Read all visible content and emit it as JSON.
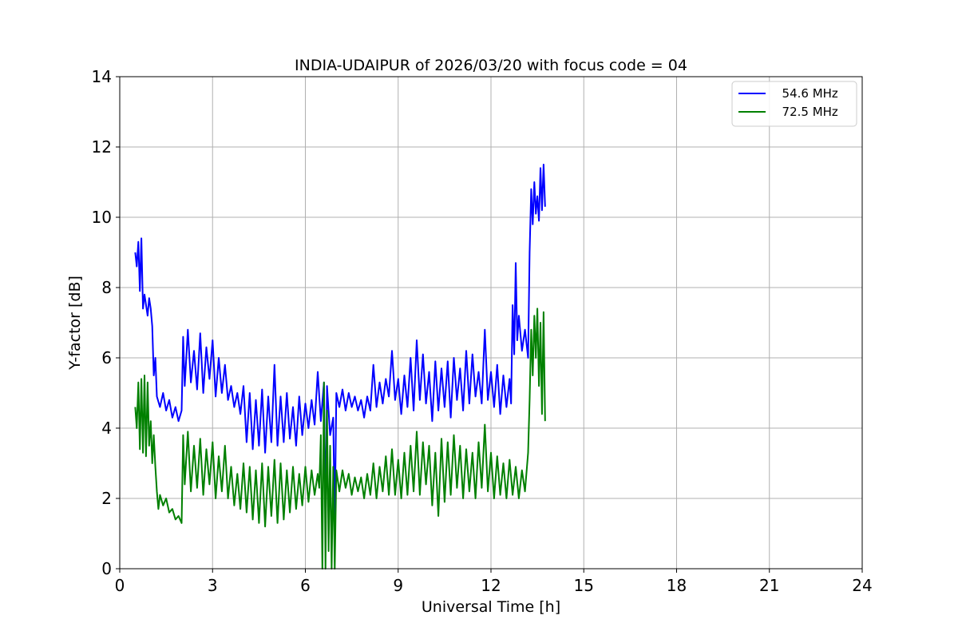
{
  "chart_data": {
    "type": "line",
    "title": "INDIA-UDAIPUR of 2026/03/20 with focus code = 04",
    "xlabel": "Universal Time [h]",
    "ylabel": "Y-factor [dB]",
    "xlim": [
      0,
      24
    ],
    "ylim": [
      0,
      14
    ],
    "xticks": [
      "0",
      "3",
      "6",
      "9",
      "12",
      "15",
      "18",
      "21",
      "24"
    ],
    "yticks": [
      "0",
      "2",
      "4",
      "6",
      "8",
      "10",
      "12",
      "14"
    ],
    "grid": true,
    "legend_position": "top-right",
    "series": [
      {
        "name": "  54.6 MHz",
        "color": "#0000ff",
        "points": [
          [
            0.5,
            9.0
          ],
          [
            0.55,
            8.6
          ],
          [
            0.6,
            9.3
          ],
          [
            0.65,
            7.9
          ],
          [
            0.7,
            9.4
          ],
          [
            0.75,
            7.4
          ],
          [
            0.8,
            7.8
          ],
          [
            0.9,
            7.2
          ],
          [
            0.95,
            7.7
          ],
          [
            1.0,
            7.4
          ],
          [
            1.05,
            6.9
          ],
          [
            1.1,
            5.5
          ],
          [
            1.15,
            6.0
          ],
          [
            1.2,
            4.9
          ],
          [
            1.3,
            4.6
          ],
          [
            1.4,
            5.0
          ],
          [
            1.5,
            4.5
          ],
          [
            1.6,
            4.8
          ],
          [
            1.7,
            4.3
          ],
          [
            1.8,
            4.6
          ],
          [
            1.9,
            4.2
          ],
          [
            2.0,
            4.5
          ],
          [
            2.05,
            6.6
          ],
          [
            2.1,
            5.2
          ],
          [
            2.2,
            6.8
          ],
          [
            2.3,
            5.3
          ],
          [
            2.4,
            6.2
          ],
          [
            2.5,
            5.1
          ],
          [
            2.6,
            6.7
          ],
          [
            2.7,
            5.0
          ],
          [
            2.8,
            6.3
          ],
          [
            2.9,
            5.4
          ],
          [
            3.0,
            6.5
          ],
          [
            3.1,
            4.9
          ],
          [
            3.2,
            6.0
          ],
          [
            3.3,
            5.0
          ],
          [
            3.4,
            5.8
          ],
          [
            3.5,
            4.8
          ],
          [
            3.6,
            5.2
          ],
          [
            3.7,
            4.6
          ],
          [
            3.8,
            5.0
          ],
          [
            3.9,
            4.4
          ],
          [
            4.0,
            5.2
          ],
          [
            4.1,
            3.6
          ],
          [
            4.2,
            5.0
          ],
          [
            4.3,
            3.4
          ],
          [
            4.4,
            4.8
          ],
          [
            4.5,
            3.5
          ],
          [
            4.6,
            5.1
          ],
          [
            4.7,
            3.3
          ],
          [
            4.8,
            4.9
          ],
          [
            4.9,
            3.6
          ],
          [
            5.0,
            5.8
          ],
          [
            5.1,
            3.5
          ],
          [
            5.2,
            4.9
          ],
          [
            5.3,
            3.6
          ],
          [
            5.4,
            5.0
          ],
          [
            5.5,
            3.7
          ],
          [
            5.6,
            4.6
          ],
          [
            5.7,
            3.5
          ],
          [
            5.8,
            4.9
          ],
          [
            5.9,
            3.8
          ],
          [
            6.0,
            4.7
          ],
          [
            6.1,
            4.0
          ],
          [
            6.2,
            4.8
          ],
          [
            6.3,
            4.1
          ],
          [
            6.4,
            5.6
          ],
          [
            6.5,
            4.2
          ],
          [
            6.6,
            5.3
          ],
          [
            6.65,
            1.2
          ],
          [
            6.7,
            5.2
          ],
          [
            6.8,
            3.8
          ],
          [
            6.9,
            4.3
          ],
          [
            6.95,
            1.2
          ],
          [
            7.0,
            5.0
          ],
          [
            7.1,
            4.6
          ],
          [
            7.2,
            5.1
          ],
          [
            7.3,
            4.5
          ],
          [
            7.4,
            5.0
          ],
          [
            7.5,
            4.6
          ],
          [
            7.6,
            4.9
          ],
          [
            7.7,
            4.5
          ],
          [
            7.8,
            4.8
          ],
          [
            7.9,
            4.3
          ],
          [
            8.0,
            4.9
          ],
          [
            8.1,
            4.5
          ],
          [
            8.2,
            5.8
          ],
          [
            8.3,
            4.6
          ],
          [
            8.4,
            5.3
          ],
          [
            8.5,
            4.7
          ],
          [
            8.6,
            5.4
          ],
          [
            8.7,
            4.9
          ],
          [
            8.8,
            6.2
          ],
          [
            8.9,
            4.8
          ],
          [
            9.0,
            5.4
          ],
          [
            9.1,
            4.4
          ],
          [
            9.2,
            5.5
          ],
          [
            9.3,
            4.6
          ],
          [
            9.4,
            6.0
          ],
          [
            9.5,
            4.5
          ],
          [
            9.6,
            6.5
          ],
          [
            9.7,
            4.8
          ],
          [
            9.8,
            6.1
          ],
          [
            9.9,
            4.7
          ],
          [
            10.0,
            5.6
          ],
          [
            10.1,
            4.2
          ],
          [
            10.2,
            5.9
          ],
          [
            10.3,
            4.5
          ],
          [
            10.4,
            5.7
          ],
          [
            10.5,
            4.6
          ],
          [
            10.6,
            5.9
          ],
          [
            10.7,
            4.3
          ],
          [
            10.8,
            6.0
          ],
          [
            10.9,
            4.8
          ],
          [
            11.0,
            5.7
          ],
          [
            11.1,
            4.5
          ],
          [
            11.2,
            6.2
          ],
          [
            11.3,
            4.7
          ],
          [
            11.4,
            6.1
          ],
          [
            11.5,
            4.9
          ],
          [
            11.6,
            5.6
          ],
          [
            11.7,
            4.7
          ],
          [
            11.8,
            6.8
          ],
          [
            11.9,
            4.8
          ],
          [
            12.0,
            5.6
          ],
          [
            12.1,
            4.6
          ],
          [
            12.2,
            5.8
          ],
          [
            12.3,
            4.4
          ],
          [
            12.4,
            5.5
          ],
          [
            12.5,
            4.6
          ],
          [
            12.6,
            5.4
          ],
          [
            12.65,
            4.7
          ],
          [
            12.7,
            7.5
          ],
          [
            12.75,
            6.1
          ],
          [
            12.8,
            8.7
          ],
          [
            12.85,
            6.5
          ],
          [
            12.9,
            7.2
          ],
          [
            13.0,
            6.2
          ],
          [
            13.1,
            6.8
          ],
          [
            13.2,
            6.0
          ],
          [
            13.25,
            9.0
          ],
          [
            13.3,
            10.8
          ],
          [
            13.35,
            9.8
          ],
          [
            13.4,
            11.0
          ],
          [
            13.45,
            10.1
          ],
          [
            13.5,
            10.6
          ],
          [
            13.55,
            9.9
          ],
          [
            13.6,
            11.4
          ],
          [
            13.65,
            10.2
          ],
          [
            13.7,
            11.5
          ],
          [
            13.75,
            10.3
          ]
        ]
      },
      {
        "name": "  72.5 MHz",
        "color": "#008000",
        "points": [
          [
            0.5,
            4.6
          ],
          [
            0.55,
            4.0
          ],
          [
            0.6,
            5.3
          ],
          [
            0.65,
            3.4
          ],
          [
            0.7,
            5.4
          ],
          [
            0.75,
            3.3
          ],
          [
            0.8,
            5.5
          ],
          [
            0.85,
            3.2
          ],
          [
            0.9,
            5.3
          ],
          [
            0.95,
            3.5
          ],
          [
            1.0,
            4.2
          ],
          [
            1.05,
            3.0
          ],
          [
            1.1,
            3.8
          ],
          [
            1.15,
            2.9
          ],
          [
            1.2,
            2.2
          ],
          [
            1.25,
            1.7
          ],
          [
            1.3,
            2.1
          ],
          [
            1.4,
            1.8
          ],
          [
            1.5,
            2.0
          ],
          [
            1.6,
            1.6
          ],
          [
            1.7,
            1.7
          ],
          [
            1.8,
            1.4
          ],
          [
            1.9,
            1.5
          ],
          [
            2.0,
            1.3
          ],
          [
            2.05,
            3.8
          ],
          [
            2.1,
            2.4
          ],
          [
            2.2,
            3.9
          ],
          [
            2.3,
            2.2
          ],
          [
            2.4,
            3.5
          ],
          [
            2.5,
            2.3
          ],
          [
            2.6,
            3.7
          ],
          [
            2.7,
            2.1
          ],
          [
            2.8,
            3.4
          ],
          [
            2.9,
            2.4
          ],
          [
            3.0,
            3.6
          ],
          [
            3.1,
            2.0
          ],
          [
            3.2,
            3.2
          ],
          [
            3.3,
            2.2
          ],
          [
            3.4,
            3.5
          ],
          [
            3.5,
            2.0
          ],
          [
            3.6,
            2.9
          ],
          [
            3.7,
            1.8
          ],
          [
            3.8,
            2.7
          ],
          [
            3.9,
            1.7
          ],
          [
            4.0,
            3.0
          ],
          [
            4.1,
            1.6
          ],
          [
            4.2,
            2.9
          ],
          [
            4.3,
            1.4
          ],
          [
            4.4,
            2.8
          ],
          [
            4.5,
            1.3
          ],
          [
            4.6,
            3.0
          ],
          [
            4.7,
            1.2
          ],
          [
            4.8,
            2.9
          ],
          [
            4.9,
            1.5
          ],
          [
            5.0,
            3.1
          ],
          [
            5.1,
            1.3
          ],
          [
            5.2,
            3.0
          ],
          [
            5.3,
            1.4
          ],
          [
            5.4,
            2.8
          ],
          [
            5.5,
            1.6
          ],
          [
            5.6,
            2.9
          ],
          [
            5.7,
            1.7
          ],
          [
            5.8,
            2.7
          ],
          [
            5.9,
            1.8
          ],
          [
            6.0,
            2.9
          ],
          [
            6.1,
            1.9
          ],
          [
            6.2,
            2.8
          ],
          [
            6.3,
            2.1
          ],
          [
            6.4,
            2.7
          ],
          [
            6.45,
            2.3
          ],
          [
            6.5,
            3.8
          ],
          [
            6.55,
            0.0
          ],
          [
            6.6,
            5.3
          ],
          [
            6.65,
            0.0
          ],
          [
            6.7,
            4.5
          ],
          [
            6.75,
            0.5
          ],
          [
            6.8,
            3.5
          ],
          [
            6.85,
            0.0
          ],
          [
            6.9,
            2.9
          ],
          [
            6.95,
            0.0
          ],
          [
            7.0,
            2.8
          ],
          [
            7.1,
            2.2
          ],
          [
            7.2,
            2.8
          ],
          [
            7.3,
            2.3
          ],
          [
            7.4,
            2.7
          ],
          [
            7.5,
            2.1
          ],
          [
            7.6,
            2.6
          ],
          [
            7.7,
            2.2
          ],
          [
            7.8,
            2.6
          ],
          [
            7.9,
            2.0
          ],
          [
            8.0,
            2.7
          ],
          [
            8.1,
            2.1
          ],
          [
            8.2,
            3.0
          ],
          [
            8.3,
            2.0
          ],
          [
            8.4,
            2.9
          ],
          [
            8.5,
            2.2
          ],
          [
            8.6,
            3.2
          ],
          [
            8.7,
            2.1
          ],
          [
            8.8,
            3.4
          ],
          [
            8.9,
            2.1
          ],
          [
            9.0,
            3.1
          ],
          [
            9.1,
            2.0
          ],
          [
            9.2,
            3.3
          ],
          [
            9.3,
            2.1
          ],
          [
            9.4,
            3.5
          ],
          [
            9.5,
            2.2
          ],
          [
            9.6,
            3.9
          ],
          [
            9.7,
            2.1
          ],
          [
            9.8,
            3.6
          ],
          [
            9.9,
            2.4
          ],
          [
            10.0,
            3.5
          ],
          [
            10.1,
            1.8
          ],
          [
            10.2,
            3.3
          ],
          [
            10.3,
            1.5
          ],
          [
            10.4,
            3.7
          ],
          [
            10.5,
            1.9
          ],
          [
            10.6,
            3.6
          ],
          [
            10.7,
            2.1
          ],
          [
            10.8,
            3.8
          ],
          [
            10.9,
            2.3
          ],
          [
            11.0,
            3.5
          ],
          [
            11.1,
            2.0
          ],
          [
            11.2,
            3.4
          ],
          [
            11.3,
            2.2
          ],
          [
            11.4,
            3.3
          ],
          [
            11.5,
            2.0
          ],
          [
            11.6,
            3.6
          ],
          [
            11.7,
            2.3
          ],
          [
            11.8,
            4.1
          ],
          [
            11.9,
            2.2
          ],
          [
            12.0,
            3.3
          ],
          [
            12.1,
            2.0
          ],
          [
            12.2,
            3.2
          ],
          [
            12.3,
            2.1
          ],
          [
            12.4,
            3.0
          ],
          [
            12.5,
            2.0
          ],
          [
            12.6,
            3.1
          ],
          [
            12.7,
            2.1
          ],
          [
            12.8,
            2.9
          ],
          [
            12.9,
            2.0
          ],
          [
            13.0,
            2.8
          ],
          [
            13.1,
            2.2
          ],
          [
            13.2,
            3.3
          ],
          [
            13.25,
            4.8
          ],
          [
            13.3,
            6.8
          ],
          [
            13.35,
            5.5
          ],
          [
            13.4,
            7.2
          ],
          [
            13.45,
            6.0
          ],
          [
            13.5,
            7.4
          ],
          [
            13.55,
            5.2
          ],
          [
            13.6,
            7.0
          ],
          [
            13.65,
            4.4
          ],
          [
            13.7,
            7.3
          ],
          [
            13.75,
            4.2
          ]
        ]
      }
    ]
  }
}
